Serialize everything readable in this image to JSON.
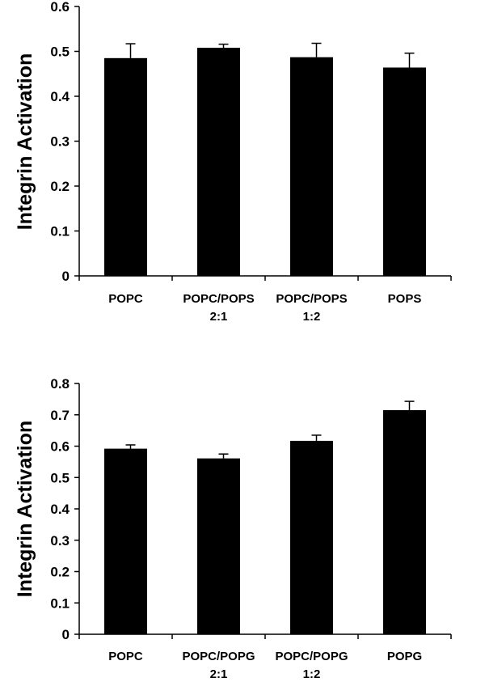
{
  "chart_data": [
    {
      "type": "bar",
      "categories": [
        [
          "POPC"
        ],
        [
          "POPC/POPS",
          "2:1"
        ],
        [
          "POPC/POPS",
          "1:2"
        ],
        [
          "POPS"
        ]
      ],
      "values": [
        0.485,
        0.508,
        0.487,
        0.464
      ],
      "errors": [
        0.032,
        0.008,
        0.031,
        0.032
      ],
      "ylabel": "Integrin Activation",
      "ylim": [
        0,
        0.6
      ],
      "yticks": [
        "0",
        "0.1",
        "0.2",
        "0.3",
        "0.4",
        "0.5",
        "0.6"
      ],
      "grid": false,
      "bar_color": "#000000"
    },
    {
      "type": "bar",
      "categories": [
        [
          "POPC"
        ],
        [
          "POPC/POPG",
          "2:1"
        ],
        [
          "POPC/POPG",
          "1:2"
        ],
        [
          "POPG"
        ]
      ],
      "values": [
        0.592,
        0.561,
        0.617,
        0.715
      ],
      "errors": [
        0.012,
        0.014,
        0.018,
        0.028
      ],
      "ylabel": "Integrin Activation",
      "ylim": [
        0,
        0.8
      ],
      "yticks": [
        "0",
        "0.1",
        "0.2",
        "0.3",
        "0.4",
        "0.5",
        "0.6",
        "0.7",
        "0.8"
      ],
      "grid": false,
      "bar_color": "#000000"
    }
  ]
}
